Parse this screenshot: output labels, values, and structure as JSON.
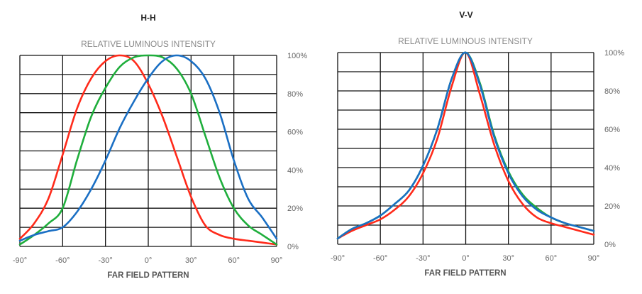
{
  "chart_data": [
    {
      "type": "line",
      "title": "H-H",
      "subtitle": "RELATIVE LUMINOUS INTENSITY",
      "xlabel": "FAR FIELD PATTERN",
      "ylabel": "",
      "x": [
        -90,
        -80,
        -70,
        -60,
        -50,
        -40,
        -30,
        -20,
        -10,
        0,
        10,
        20,
        30,
        40,
        50,
        60,
        70,
        80,
        90
      ],
      "xlim": [
        -90,
        90
      ],
      "ylim": [
        0,
        100
      ],
      "x_ticks": [
        -90,
        -60,
        -30,
        0,
        30,
        60,
        90
      ],
      "x_tick_labels": [
        "-90°",
        "-60°",
        "-30°",
        "0°",
        "30°",
        "60°",
        "90°"
      ],
      "y_ticks": [
        0,
        20,
        40,
        60,
        80,
        100
      ],
      "y_tick_labels": [
        "0%",
        "20%",
        "40%",
        "60%",
        "80%",
        "100%"
      ],
      "y_axis_side": "right",
      "grid": true,
      "y_grid_step": 10,
      "x_grid_step": 30,
      "legend": "none",
      "series": [
        {
          "name": "red",
          "color": "#ff2a1a",
          "values": [
            4,
            12,
            25,
            48,
            72,
            88,
            97,
            100,
            97,
            85,
            68,
            47,
            26,
            11,
            6,
            4,
            3,
            2,
            1
          ]
        },
        {
          "name": "green",
          "color": "#1fae3c",
          "values": [
            1,
            6,
            12,
            20,
            45,
            68,
            83,
            94,
            99,
            100,
            99,
            93,
            80,
            58,
            36,
            20,
            11,
            6,
            1
          ]
        },
        {
          "name": "blue",
          "color": "#1a6fc4",
          "values": [
            3,
            6,
            8,
            10,
            18,
            30,
            45,
            62,
            76,
            88,
            97,
            100,
            97,
            88,
            70,
            45,
            25,
            15,
            4
          ]
        }
      ]
    },
    {
      "type": "line",
      "title": "V-V",
      "subtitle": "RELATIVE LUMINOUS INTENSITY",
      "xlabel": "FAR FIELD PATTERN",
      "ylabel": "",
      "x": [
        -90,
        -80,
        -70,
        -60,
        -50,
        -40,
        -30,
        -20,
        -10,
        0,
        10,
        20,
        30,
        40,
        50,
        60,
        70,
        80,
        90
      ],
      "xlim": [
        -90,
        90
      ],
      "ylim": [
        0,
        100
      ],
      "x_ticks": [
        -90,
        -60,
        -30,
        0,
        30,
        60,
        90
      ],
      "x_tick_labels": [
        "-90°",
        "-60°",
        "-30°",
        "0°",
        "30°",
        "60°",
        "90°"
      ],
      "y_ticks": [
        0,
        20,
        40,
        60,
        80,
        100
      ],
      "y_tick_labels": [
        "0%",
        "20%",
        "40%",
        "60%",
        "80%",
        "100%"
      ],
      "y_axis_side": "right",
      "grid": true,
      "y_grid_step": 10,
      "x_grid_step": 30,
      "legend": "none",
      "series": [
        {
          "name": "red",
          "color": "#ff2a1a",
          "values": [
            3,
            7,
            10,
            13,
            18,
            25,
            37,
            55,
            82,
            100,
            78,
            52,
            33,
            21,
            14,
            11,
            9,
            7,
            5
          ]
        },
        {
          "name": "green",
          "color": "#1fae3c",
          "values": [
            3,
            8,
            11,
            15,
            21,
            28,
            41,
            60,
            86,
            100,
            84,
            57,
            38,
            26,
            19,
            14,
            11,
            9,
            7
          ]
        },
        {
          "name": "blue",
          "color": "#1a6fc4",
          "values": [
            3,
            8,
            11,
            15,
            21,
            28,
            41,
            60,
            86,
            100,
            83,
            56,
            37,
            25,
            18,
            14,
            11,
            9,
            7
          ]
        }
      ]
    }
  ]
}
